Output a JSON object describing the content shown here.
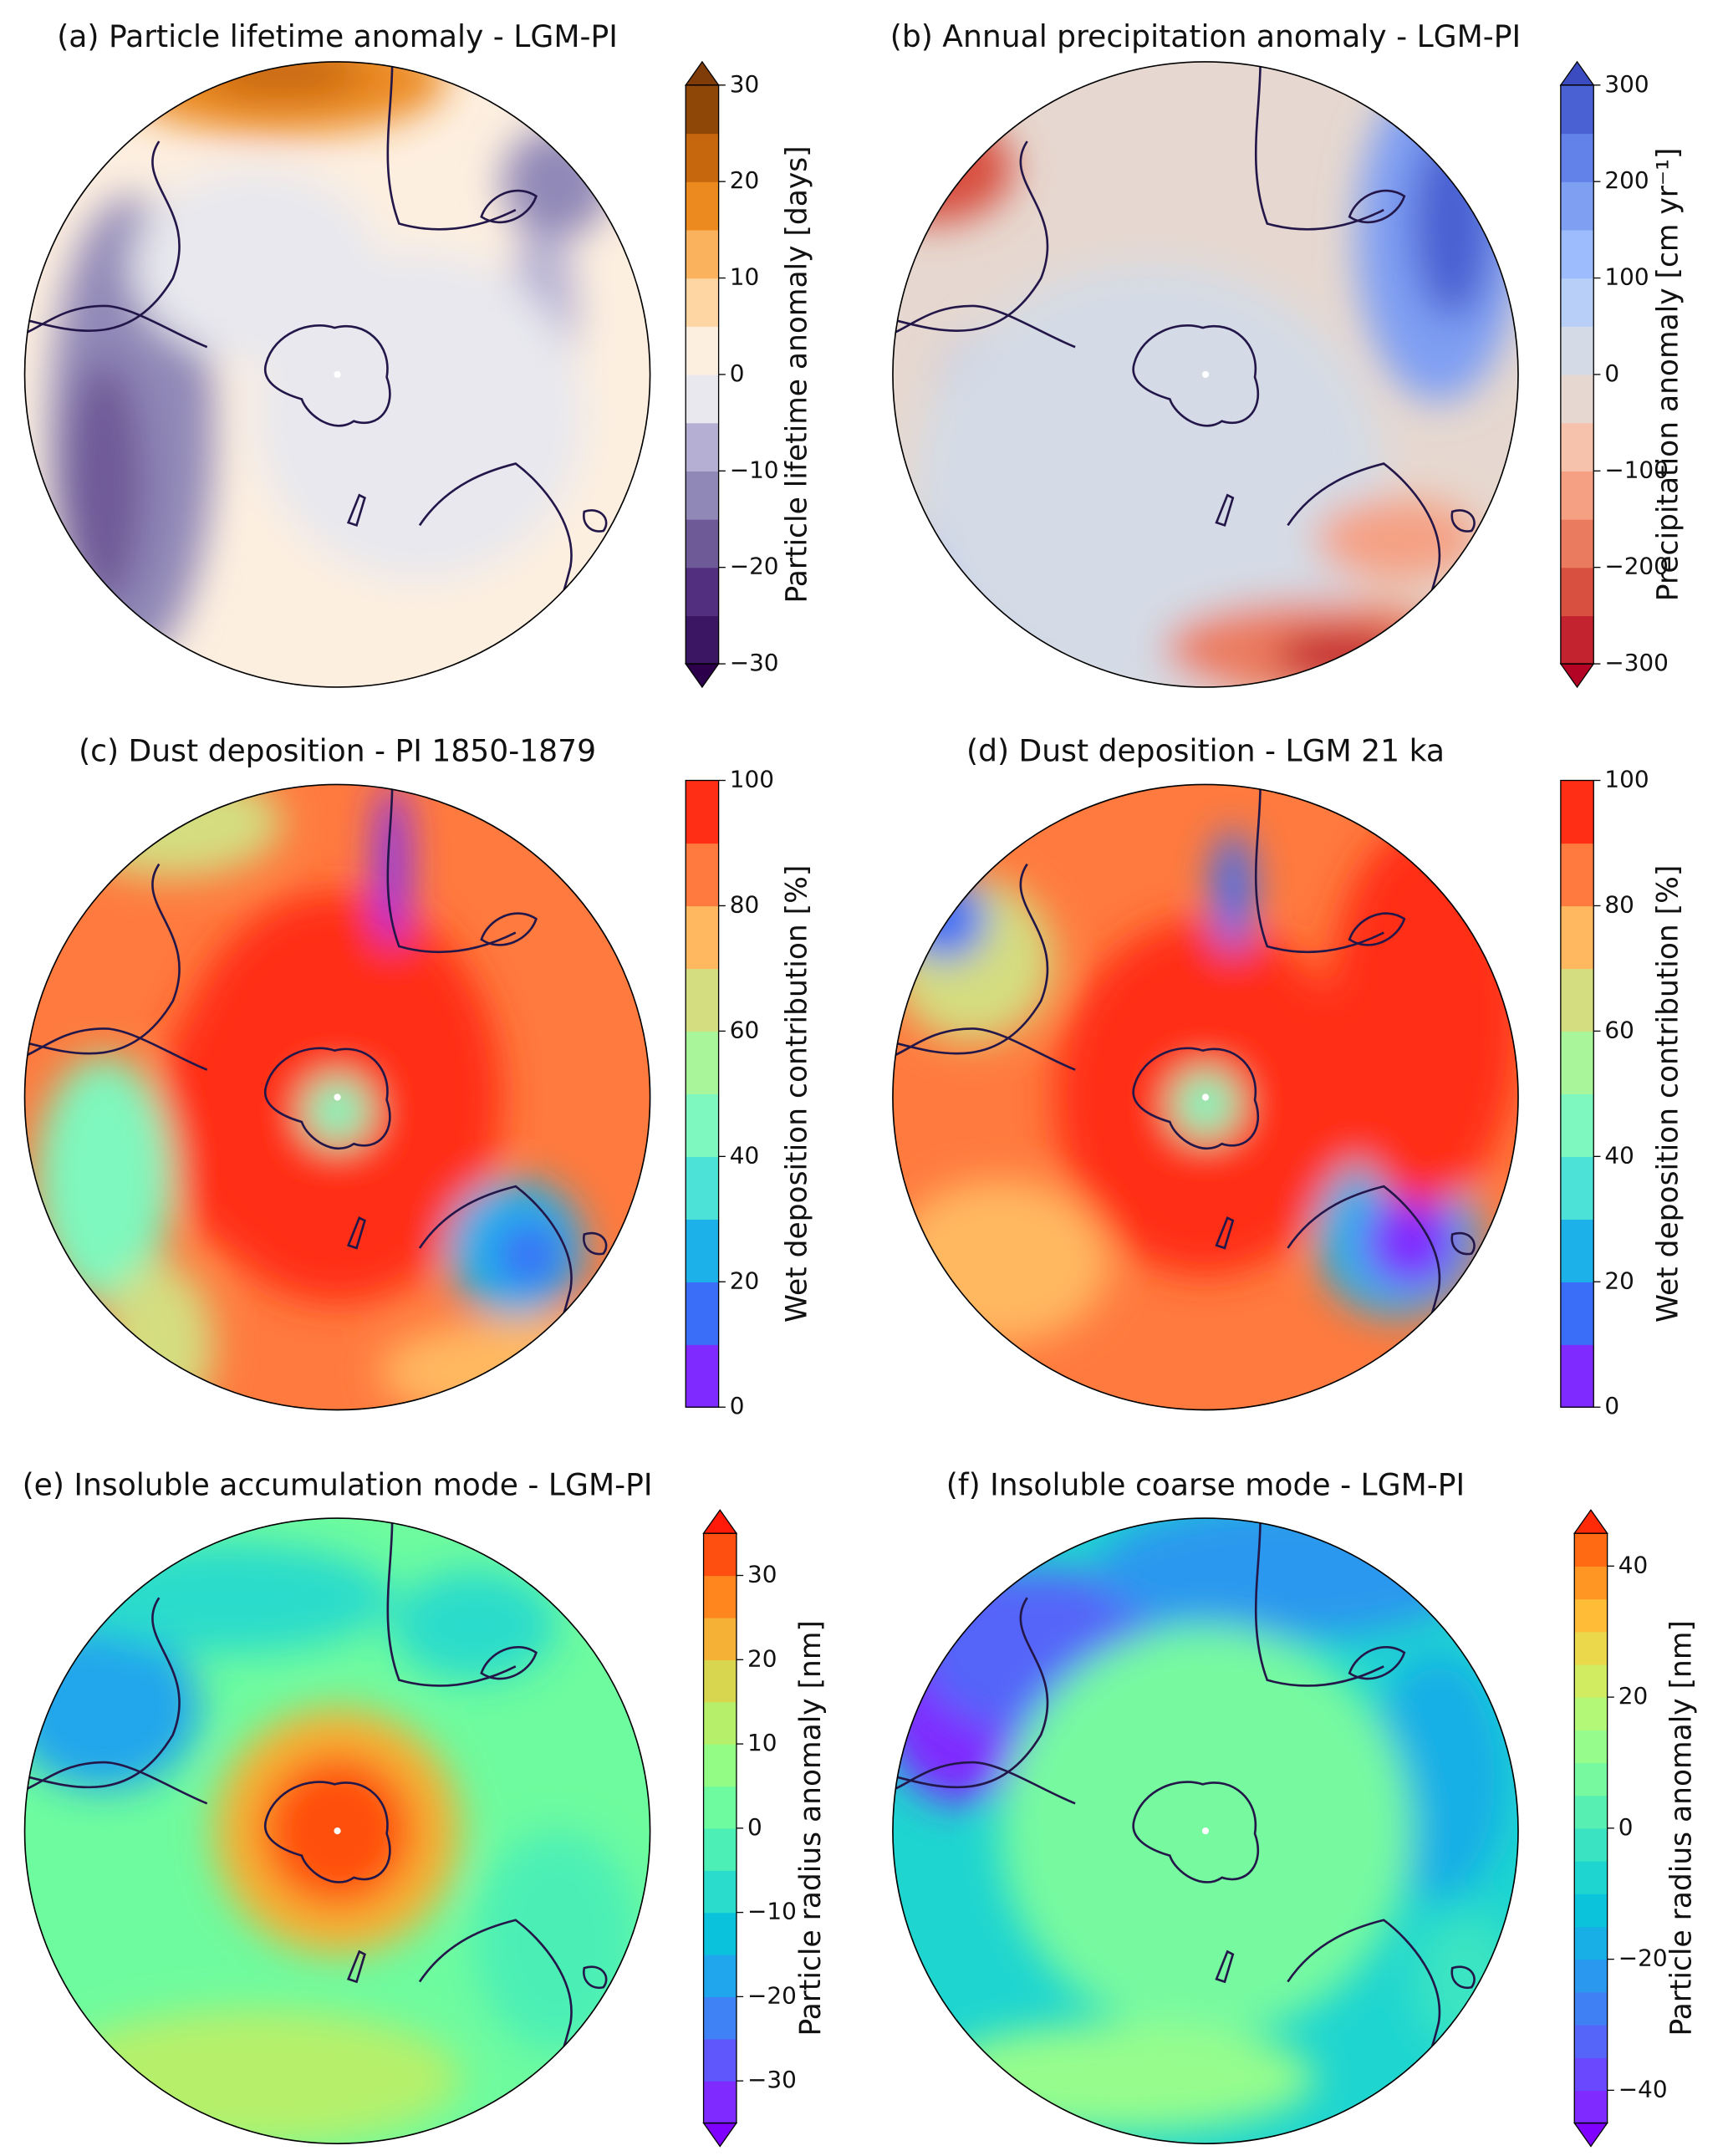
{
  "panels": [
    {
      "title": "(a) Particle lifetime anomaly - LGM-PI",
      "colorbar": {
        "label": "Particle lifetime anomaly [days]",
        "lim": [
          -30,
          30
        ],
        "ticks": [
          {
            "value": -30,
            "label": "−30"
          },
          {
            "value": -20,
            "label": "−20"
          },
          {
            "value": -10,
            "label": "−10"
          },
          0,
          10,
          20,
          30
        ],
        "colors": [
          "#3b1763",
          "#532f80",
          "#6f5a98",
          "#9088b7",
          "#b5b0d3",
          "#e8e8ee",
          "#fdefe0",
          "#fdd6a4",
          "#fbb25c",
          "#ec8a20",
          "#c6660d",
          "#8f4708"
        ],
        "extend_colors": [
          "#2d004b",
          "#7f3b08"
        ]
      }
    },
    {
      "title": "(b) Annual precipitation anomaly - LGM-PI",
      "colorbar": {
        "label": "Precipitation anomaly [cm yr⁻¹]",
        "lim": [
          -300,
          300
        ],
        "ticks": [
          {
            "value": -300,
            "label": "−300"
          },
          {
            "value": -200,
            "label": "−200"
          },
          {
            "value": -100,
            "label": "−100"
          },
          0,
          100,
          200,
          300
        ],
        "colors": [
          "#c3222f",
          "#d8503f",
          "#eb7b5f",
          "#f5a083",
          "#f6c2ab",
          "#e6d8d0",
          "#d4dbe6",
          "#b8cff8",
          "#9cbcfd",
          "#7f9ff3",
          "#6282ea",
          "#4961d2"
        ],
        "extend_colors": [
          "#b40426",
          "#3b4cc0"
        ]
      }
    },
    {
      "title": "(c) Dust deposition - PI 1850-1879",
      "colorbar": {
        "label": "Wet deposition contribution [%]",
        "lim": [
          0,
          100
        ],
        "ticks": [
          0,
          20,
          40,
          60,
          80,
          100
        ],
        "colors": [
          "#7f2bff",
          "#3a6df8",
          "#1cb2e9",
          "#4ce2d7",
          "#7ef8be",
          "#a8f59a",
          "#d4dd80",
          "#ffb860",
          "#ff7a3e",
          "#ff2e15"
        ]
      }
    },
    {
      "title": "(d) Dust deposition - LGM 21 ka",
      "colorbar": {
        "label": "Wet deposition contribution [%]",
        "lim": [
          0,
          100
        ],
        "ticks": [
          0,
          20,
          40,
          60,
          80,
          100
        ],
        "colors": [
          "#7f2bff",
          "#3a6df8",
          "#1cb2e9",
          "#4ce2d7",
          "#7ef8be",
          "#a8f59a",
          "#d4dd80",
          "#ffb860",
          "#ff7a3e",
          "#ff2e15"
        ]
      }
    },
    {
      "title": "(e) Insoluble accumulation mode - LGM-PI",
      "colorbar": {
        "label": "Particle radius anomaly [nm]",
        "lim": [
          -35,
          35
        ],
        "ticks": [
          {
            "value": -30,
            "label": "−30"
          },
          {
            "value": -20,
            "label": "−20"
          },
          {
            "value": -10,
            "label": "−10"
          },
          0,
          10,
          20,
          30
        ],
        "colors": [
          "#7f2bff",
          "#5f57fb",
          "#3f82f5",
          "#20a6ec",
          "#0bc2dd",
          "#2adccb",
          "#4cefb6",
          "#6efb9f",
          "#93fc85",
          "#b6f06b",
          "#d8d64f",
          "#f5b135",
          "#ff851f",
          "#ff4f10"
        ],
        "extend_colors": [
          "#8000ff",
          "#ff1a0a"
        ]
      }
    },
    {
      "title": "(f) Insoluble coarse mode - LGM-PI",
      "colorbar": {
        "label": "Particle radius anomaly [nm]",
        "lim": [
          -45,
          45
        ],
        "ticks": [
          {
            "value": -40,
            "label": "−40"
          },
          {
            "value": -20,
            "label": "−20"
          },
          0,
          20,
          40
        ],
        "colors": [
          "#7f2bff",
          "#6a48fd",
          "#5565f9",
          "#3f80f4",
          "#2a98ee",
          "#17afe6",
          "#0cc3dc",
          "#1ed5d0",
          "#3ae4c2",
          "#58f0b2",
          "#77f9a0",
          "#96fd8c",
          "#b4f877",
          "#d1ec61",
          "#ebd84b",
          "#ffbc36",
          "#ff9523",
          "#ff6a13"
        ],
        "extend_colors": [
          "#8000ff",
          "#ff2a08"
        ]
      }
    }
  ]
}
